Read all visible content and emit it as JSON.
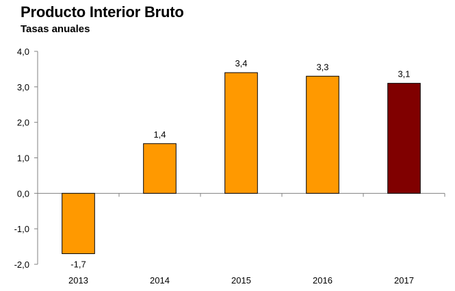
{
  "chart_data": {
    "type": "bar",
    "title": "Producto Interior Bruto",
    "subtitle": "Tasas anuales",
    "categories": [
      "2013",
      "2014",
      "2015",
      "2016",
      "2017"
    ],
    "values": [
      -1.7,
      1.4,
      3.4,
      3.3,
      3.1
    ],
    "value_labels": [
      "-1,7",
      "1,4",
      "3,4",
      "3,3",
      "3,1"
    ],
    "bar_colors": [
      "#FF9900",
      "#FF9900",
      "#FF9900",
      "#FF9900",
      "#800000"
    ],
    "ylim": [
      -2.0,
      4.0
    ],
    "y_ticks": [
      4.0,
      3.0,
      2.0,
      1.0,
      0.0,
      -1.0,
      -2.0
    ],
    "y_tick_labels": [
      "4,0",
      "3,0",
      "2,0",
      "1,0",
      "0,0",
      "-1,0",
      "-2,0"
    ],
    "xlabel": "",
    "ylabel": "",
    "grid": false,
    "legend": "none",
    "axis_color": "#808080",
    "bar_border_color": "#000000"
  }
}
